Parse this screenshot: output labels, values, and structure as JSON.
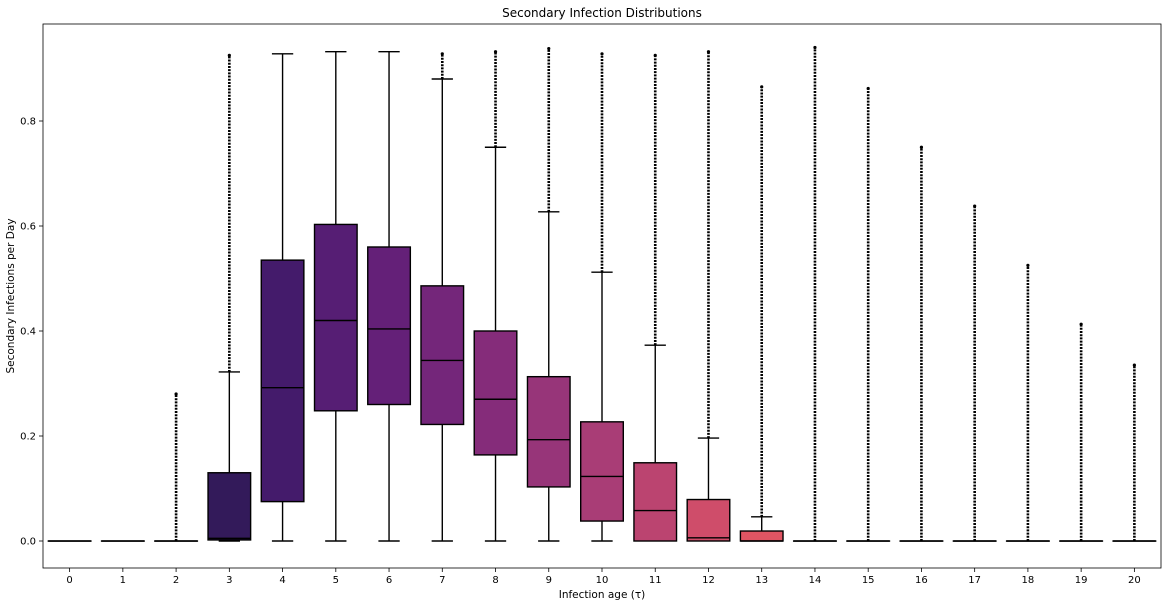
{
  "chart_data": {
    "type": "box",
    "title": "Secondary Infection Distributions",
    "xlabel": "Infection age (τ)",
    "ylabel": "Secondary Infections per Day",
    "ylim": [
      -0.05,
      0.98
    ],
    "yticks": [
      0.0,
      0.2,
      0.4,
      0.6,
      0.8
    ],
    "ytick_labels": [
      "0.0",
      "0.2",
      "0.4",
      "0.6",
      "0.8"
    ],
    "grid": false,
    "legend": "none",
    "categories": [
      "0",
      "1",
      "2",
      "3",
      "4",
      "5",
      "6",
      "7",
      "8",
      "9",
      "10",
      "11",
      "12",
      "13",
      "14",
      "15",
      "16",
      "17",
      "18",
      "19",
      "20"
    ],
    "boxes": [
      {
        "q1": 0.0,
        "median": 0.0,
        "q3": 0.0,
        "whisker_low": 0.0,
        "whisker_high": 0.0,
        "outlier_max": null,
        "color": "#000000"
      },
      {
        "q1": 0.0,
        "median": 0.0,
        "q3": 0.0,
        "whisker_low": 0.0,
        "whisker_high": 0.0,
        "outlier_max": null,
        "color": "#000000"
      },
      {
        "q1": 0.0,
        "median": 0.0,
        "q3": 0.0,
        "whisker_low": 0.0,
        "whisker_high": 0.0,
        "outlier_max": 0.28,
        "color": "#000004"
      },
      {
        "q1": 0.002,
        "median": 0.005,
        "q3": 0.13,
        "whisker_low": 0.0,
        "whisker_high": 0.322,
        "outlier_max": 0.925,
        "color": "#331a5a"
      },
      {
        "q1": 0.075,
        "median": 0.292,
        "q3": 0.535,
        "whisker_low": 0.0,
        "whisker_high": 0.928,
        "outlier_max": null,
        "color": "#441b6b"
      },
      {
        "q1": 0.248,
        "median": 0.42,
        "q3": 0.603,
        "whisker_low": 0.0,
        "whisker_high": 0.932,
        "outlier_max": null,
        "color": "#561e74"
      },
      {
        "q1": 0.26,
        "median": 0.404,
        "q3": 0.56,
        "whisker_low": 0.0,
        "whisker_high": 0.932,
        "outlier_max": null,
        "color": "#642078"
      },
      {
        "q1": 0.222,
        "median": 0.344,
        "q3": 0.486,
        "whisker_low": 0.0,
        "whisker_high": 0.88,
        "outlier_max": 0.928,
        "color": "#74267a"
      },
      {
        "q1": 0.164,
        "median": 0.27,
        "q3": 0.4,
        "whisker_low": 0.0,
        "whisker_high": 0.75,
        "outlier_max": 0.932,
        "color": "#852c7a"
      },
      {
        "q1": 0.103,
        "median": 0.193,
        "q3": 0.313,
        "whisker_low": 0.0,
        "whisker_high": 0.627,
        "outlier_max": 0.938,
        "color": "#973579"
      },
      {
        "q1": 0.038,
        "median": 0.123,
        "q3": 0.227,
        "whisker_low": 0.0,
        "whisker_high": 0.512,
        "outlier_max": 0.928,
        "color": "#a93d76"
      },
      {
        "q1": 0.0,
        "median": 0.058,
        "q3": 0.149,
        "whisker_low": 0.0,
        "whisker_high": 0.373,
        "outlier_max": 0.925,
        "color": "#bb4470"
      },
      {
        "q1": 0.0,
        "median": 0.006,
        "q3": 0.079,
        "whisker_low": 0.0,
        "whisker_high": 0.196,
        "outlier_max": 0.932,
        "color": "#cf4d6a"
      },
      {
        "q1": 0.0,
        "median": 0.0,
        "q3": 0.019,
        "whisker_low": 0.0,
        "whisker_high": 0.046,
        "outlier_max": 0.865,
        "color": "#e05563"
      },
      {
        "q1": 0.0,
        "median": 0.0,
        "q3": 0.0,
        "whisker_low": 0.0,
        "whisker_high": 0.0,
        "outlier_max": 0.94,
        "color": "#000000"
      },
      {
        "q1": 0.0,
        "median": 0.0,
        "q3": 0.0,
        "whisker_low": 0.0,
        "whisker_high": 0.0,
        "outlier_max": 0.862,
        "color": "#000000"
      },
      {
        "q1": 0.0,
        "median": 0.0,
        "q3": 0.0,
        "whisker_low": 0.0,
        "whisker_high": 0.0,
        "outlier_max": 0.75,
        "color": "#000000"
      },
      {
        "q1": 0.0,
        "median": 0.0,
        "q3": 0.0,
        "whisker_low": 0.0,
        "whisker_high": 0.0,
        "outlier_max": 0.638,
        "color": "#000000"
      },
      {
        "q1": 0.0,
        "median": 0.0,
        "q3": 0.0,
        "whisker_low": 0.0,
        "whisker_high": 0.0,
        "outlier_max": 0.525,
        "color": "#000000"
      },
      {
        "q1": 0.0,
        "median": 0.0,
        "q3": 0.0,
        "whisker_low": 0.0,
        "whisker_high": 0.0,
        "outlier_max": 0.413,
        "color": "#000000"
      },
      {
        "q1": 0.0,
        "median": 0.0,
        "q3": 0.0,
        "whisker_low": 0.0,
        "whisker_high": 0.0,
        "outlier_max": 0.335,
        "color": "#000000"
      }
    ]
  }
}
